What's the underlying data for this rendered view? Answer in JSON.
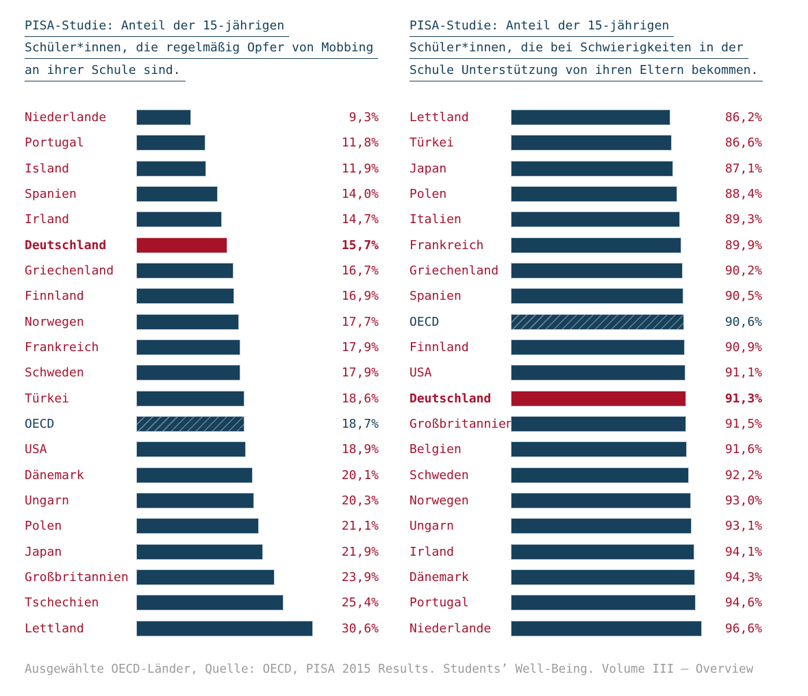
{
  "chart_data": [
    {
      "type": "bar",
      "orientation": "horizontal",
      "title": "PISA-Studie: Anteil der 15-jährigen Schüler*innen, die regelmäßig Opfer von Mobbing an ihrer Schule sind.",
      "title_lines": [
        "PISA-Studie: Anteil der 15-jährigen",
        "Schüler*innen, die regelmäßig Opfer von Mobbing",
        "an ihrer Schule sind."
      ],
      "unit": "%",
      "categories": [
        "Niederlande",
        "Portugal",
        "Island",
        "Spanien",
        "Irland",
        "Deutschland",
        "Griechenland",
        "Finnland",
        "Norwegen",
        "Frankreich",
        "Schweden",
        "Türkei",
        "OECD",
        "USA",
        "Dänemark",
        "Ungarn",
        "Polen",
        "Japan",
        "Großbritannien",
        "Tschechien",
        "Lettland"
      ],
      "values": [
        9.3,
        11.8,
        11.9,
        14.0,
        14.7,
        15.7,
        16.7,
        16.9,
        17.7,
        17.9,
        17.9,
        18.6,
        18.7,
        18.9,
        20.1,
        20.3,
        21.1,
        21.9,
        23.9,
        25.4,
        30.6
      ],
      "value_labels": [
        "9,3%",
        "11,8%",
        "11,9%",
        "14,0%",
        "14,7%",
        "15,7%",
        "16,7%",
        "16,9%",
        "17,7%",
        "17,9%",
        "17,9%",
        "18,6%",
        "18,7%",
        "18,9%",
        "20,1%",
        "20,3%",
        "21,1%",
        "21,9%",
        "23,9%",
        "25,4%",
        "30,6%"
      ],
      "highlight_category": "Deutschland",
      "hatched_category": "OECD",
      "xlim": [
        0,
        31
      ],
      "grid": false,
      "legend": "none",
      "bar_scale": {
        "v0": 0,
        "px0": 0,
        "v1": 30.6,
        "px1": 256
      }
    },
    {
      "type": "bar",
      "orientation": "horizontal",
      "title": "PISA-Studie: Anteil der 15-jährigen Schüler*innen, die bei Schwierigkeiten in der Schule Unterstützung von ihren Eltern bekommen.",
      "title_lines": [
        "PISA-Studie: Anteil der 15-jährigen",
        "Schüler*innen, die bei Schwierigkeiten in der",
        "Schule Unterstützung von ihren Eltern bekommen."
      ],
      "unit": "%",
      "categories": [
        "Lettland",
        "Türkei",
        "Japan",
        "Polen",
        "Italien",
        "Frankreich",
        "Griechenland",
        "Spanien",
        "OECD",
        "Finnland",
        "USA",
        "Deutschland",
        "Großbritannien",
        "Belgien",
        "Schweden",
        "Norwegen",
        "Ungarn",
        "Irland",
        "Dänemark",
        "Portugal",
        "Niederlande"
      ],
      "values": [
        86.2,
        86.6,
        87.1,
        88.4,
        89.3,
        89.9,
        90.2,
        90.5,
        90.6,
        90.9,
        91.1,
        91.3,
        91.5,
        91.6,
        92.2,
        93.0,
        93.1,
        94.1,
        94.3,
        94.6,
        96.6
      ],
      "value_labels": [
        "86,2%",
        "86,6%",
        "87,1%",
        "88,4%",
        "89,3%",
        "89,9%",
        "90,2%",
        "90,5%",
        "90,6%",
        "90,9%",
        "91,1%",
        "91,3%",
        "91,5%",
        "91,6%",
        "92,2%",
        "93,0%",
        "93,1%",
        "94,1%",
        "94,3%",
        "94,6%",
        "96,6%"
      ],
      "highlight_category": "Deutschland",
      "hatched_category": "OECD",
      "xlim": [
        0,
        100
      ],
      "grid": false,
      "legend": "none",
      "bar_scale": {
        "v0": 86.2,
        "px0": 231,
        "v1": 96.6,
        "px1": 277
      }
    }
  ],
  "footer": "Ausgewählte OECD-Länder, Quelle: OECD, PISA 2015 Results. Students’ Well-Being. Volume III – Overview",
  "colors": {
    "navy": "#17405b",
    "red_bar": "#a81228",
    "red_text": "#a9112d",
    "bar_border": "#bccad4",
    "bar_border_red": "#dcc6cb",
    "hatch_line": "rgba(255,255,255,0.35)",
    "gray_footer": "#9b9b9b"
  }
}
